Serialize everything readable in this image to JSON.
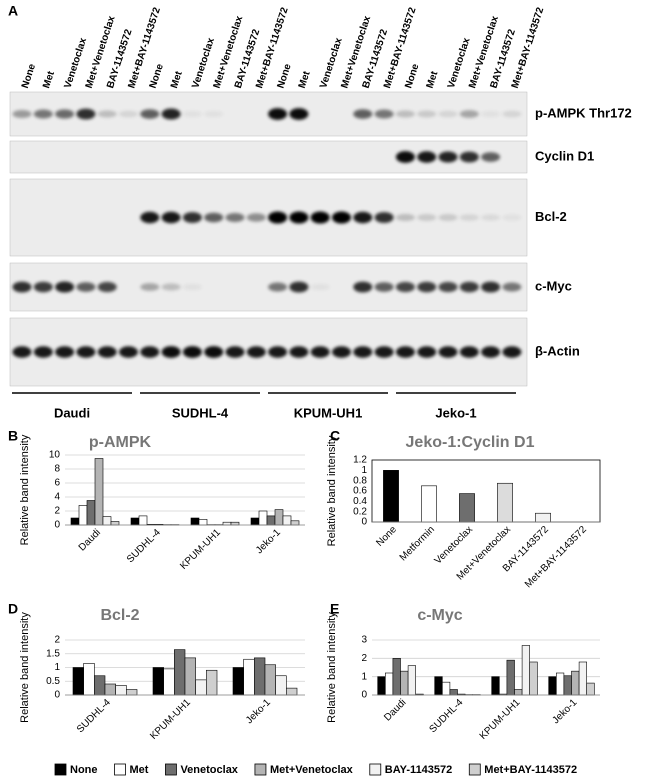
{
  "panel_a": {
    "label": "A",
    "lanes": [
      "None",
      "Met",
      "Venetoclax",
      "Met+Venetoclax",
      "BAY-1143572",
      "Met+BAY-1143572",
      "None",
      "Met",
      "Venetoclax",
      "Met+Venetoclax",
      "BAY-1143572",
      "Met+BAY-1143572",
      "None",
      "Met",
      "Venetoclax",
      "Met+Venetoclax",
      "BAY-1143572",
      "Met+BAY-1143572",
      "None",
      "Met",
      "Venetoclax",
      "Met+Venetoclax",
      "BAY-1143572",
      "Met+BAY-1143572"
    ],
    "blots": [
      {
        "name": "p-AMPK Thr172",
        "bands": [
          0.35,
          0.5,
          0.55,
          0.8,
          0.2,
          0.1,
          0.6,
          0.85,
          0.05,
          0.05,
          0,
          0,
          0.95,
          0.95,
          0,
          0,
          0.6,
          0.5,
          0.2,
          0.15,
          0.1,
          0.3,
          0.05,
          0.1
        ]
      },
      {
        "name": "Cyclin D1",
        "bands": [
          0,
          0,
          0,
          0,
          0,
          0,
          0,
          0,
          0,
          0,
          0,
          0,
          0,
          0,
          0,
          0,
          0,
          0,
          0.95,
          0.9,
          0.85,
          0.8,
          0.6,
          0
        ]
      },
      {
        "name": "Bcl-2",
        "bands": [
          0,
          0,
          0,
          0,
          0,
          0,
          0.9,
          0.9,
          0.8,
          0.6,
          0.5,
          0.4,
          1,
          1,
          1,
          1,
          0.9,
          0.8,
          0.2,
          0.15,
          0.15,
          0.1,
          0.08,
          0.05
        ]
      },
      {
        "name": "c-Myc",
        "bands": [
          0.8,
          0.75,
          0.85,
          0.6,
          0.7,
          0,
          0.3,
          0.2,
          0.05,
          0,
          0,
          0,
          0.5,
          0.8,
          0.05,
          0,
          0.8,
          0.6,
          0.7,
          0.75,
          0.7,
          0.75,
          0.8,
          0.5
        ]
      },
      {
        "name": "β-Actin",
        "bands": [
          0.9,
          0.9,
          0.9,
          0.9,
          0.9,
          0.9,
          0.9,
          0.95,
          0.95,
          0.95,
          0.9,
          0.9,
          0.9,
          0.9,
          0.9,
          0.9,
          0.9,
          0.9,
          0.9,
          0.9,
          0.9,
          0.9,
          0.9,
          0.9
        ]
      }
    ],
    "cell_lines": [
      "Daudi",
      "SUDHL-4",
      "KPUM-UH1",
      "Jeko-1"
    ]
  },
  "chart_data": [
    {
      "type": "bar",
      "panel": "B",
      "title": "p-AMPK",
      "y_label": "Relative band intensity",
      "categories": [
        "Daudi",
        "SUDHL-4",
        "KPUM-UH1",
        "Jeko-1"
      ],
      "ylim": [
        0,
        10
      ],
      "yticks": [
        0,
        2,
        4,
        6,
        8,
        10
      ],
      "grid": true,
      "series": [
        {
          "name": "None",
          "color": "#000000",
          "values": [
            1,
            1,
            1,
            1
          ]
        },
        {
          "name": "Met",
          "color": "#ffffff",
          "values": [
            2.8,
            1.3,
            0.8,
            2
          ]
        },
        {
          "name": "Venetoclax",
          "color": "#6e6e6e",
          "values": [
            3.5,
            0.1,
            0.05,
            1.3
          ]
        },
        {
          "name": "Met+Venetoclax",
          "color": "#b4b4b4",
          "values": [
            9.5,
            0.1,
            0.05,
            2.2
          ]
        },
        {
          "name": "BAY-1143572",
          "color": "#f2f2f2",
          "values": [
            1.2,
            0.05,
            0.4,
            1.3
          ]
        },
        {
          "name": "Met+BAY-1143572",
          "color": "#cfcfcf",
          "values": [
            0.5,
            0.05,
            0.4,
            0.6
          ]
        }
      ]
    },
    {
      "type": "bar",
      "panel": "C",
      "title": "Jeko-1:Cyclin D1",
      "y_label": "Relative band intensity",
      "categories": [
        "None",
        "Metformin",
        "Venetoclax",
        "Met+Venetoclax",
        "BAY-1143572",
        "Met+BAY-1143572"
      ],
      "values": [
        1,
        0.7,
        0.55,
        0.75,
        0.17,
        0
      ],
      "colors": [
        "#000000",
        "#ffffff",
        "#6e6e6e",
        "#dcdcdc",
        "#f2f2f2",
        "#cfcfcf"
      ],
      "ylim": [
        0,
        1.2
      ],
      "yticks": [
        0,
        0.2,
        0.4,
        0.6,
        0.8,
        1,
        1.2
      ],
      "grid": false
    },
    {
      "type": "bar",
      "panel": "D",
      "title": "Bcl-2",
      "y_label": "Relative band intensity",
      "categories": [
        "SUDHL-4",
        "KPUM-UH1",
        "Jeko-1"
      ],
      "ylim": [
        0,
        2
      ],
      "yticks": [
        0,
        0.5,
        1,
        1.5,
        2
      ],
      "grid": true,
      "series": [
        {
          "name": "None",
          "color": "#000000",
          "values": [
            1,
            1,
            1
          ]
        },
        {
          "name": "Met",
          "color": "#ffffff",
          "values": [
            1.15,
            0.95,
            1.3
          ]
        },
        {
          "name": "Venetoclax",
          "color": "#6e6e6e",
          "values": [
            0.7,
            1.65,
            1.35
          ]
        },
        {
          "name": "Met+Venetoclax",
          "color": "#b4b4b4",
          "values": [
            0.4,
            1.35,
            1.1
          ]
        },
        {
          "name": "BAY-1143572",
          "color": "#f2f2f2",
          "values": [
            0.35,
            0.55,
            0.7
          ]
        },
        {
          "name": "Met+BAY-1143572",
          "color": "#cfcfcf",
          "values": [
            0.2,
            0.9,
            0.25
          ]
        }
      ]
    },
    {
      "type": "bar",
      "panel": "E",
      "title": "c-Myc",
      "y_label": "Relative band intensity",
      "categories": [
        "Daudi",
        "SUDHL-4",
        "KPUM-UH1",
        "Jeko-1"
      ],
      "ylim": [
        0,
        3
      ],
      "yticks": [
        0,
        1,
        2,
        3
      ],
      "grid": true,
      "series": [
        {
          "name": "None",
          "color": "#000000",
          "values": [
            1,
            1,
            1,
            1
          ]
        },
        {
          "name": "Met",
          "color": "#ffffff",
          "values": [
            1.2,
            0.7,
            0.05,
            1.2
          ]
        },
        {
          "name": "Venetoclax",
          "color": "#6e6e6e",
          "values": [
            2,
            0.3,
            1.9,
            1.05
          ]
        },
        {
          "name": "Met+Venetoclax",
          "color": "#b4b4b4",
          "values": [
            1.3,
            0.05,
            0.3,
            1.3
          ]
        },
        {
          "name": "BAY-1143572",
          "color": "#f2f2f2",
          "values": [
            1.6,
            0.02,
            2.7,
            1.8
          ]
        },
        {
          "name": "Met+BAY-1143572",
          "color": "#cfcfcf",
          "values": [
            0.05,
            0.02,
            1.8,
            0.65
          ]
        }
      ]
    }
  ]
}
